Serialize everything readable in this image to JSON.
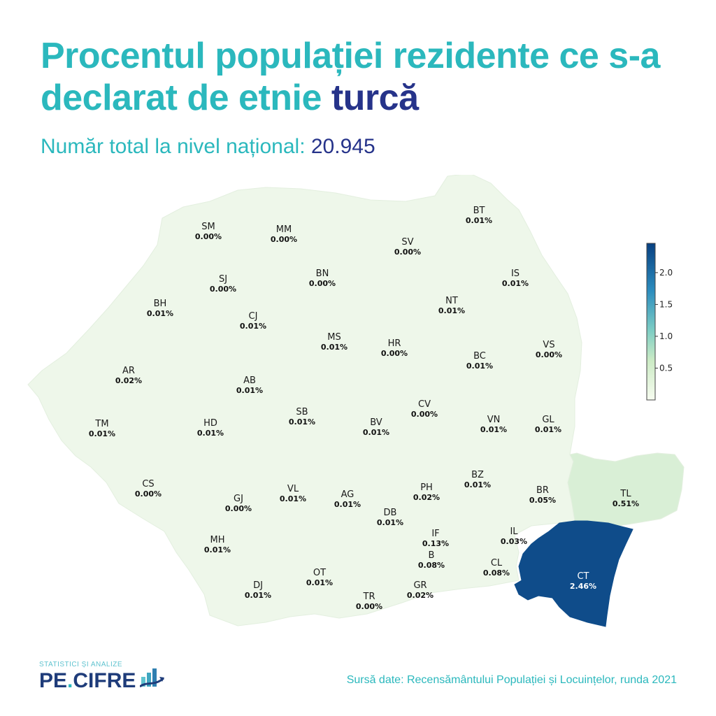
{
  "title": {
    "main": "Procentul populației rezidente ce s-a declarat de etnie",
    "accent": "turcă"
  },
  "subtitle": {
    "label": "Număr total la nivel național:",
    "value": "20.945"
  },
  "colors": {
    "title": "#2bb8bd",
    "accent": "#26338a",
    "base_region": "#eef7ea",
    "tl_region": "#d9efd6",
    "ct_region": "#0f4c8a"
  },
  "colorbar": {
    "ticks": [
      "2.0",
      "1.5",
      "1.0",
      "0.5"
    ],
    "tick_values": [
      2.0,
      1.5,
      1.0,
      0.5
    ],
    "min": 0.0,
    "max": 2.46
  },
  "chart_data": {
    "type": "choropleth",
    "unit": "%",
    "regions": [
      {
        "code": "SM",
        "value": "0.00%"
      },
      {
        "code": "MM",
        "value": "0.00%"
      },
      {
        "code": "BT",
        "value": "0.01%"
      },
      {
        "code": "SV",
        "value": "0.00%"
      },
      {
        "code": "SJ",
        "value": "0.00%"
      },
      {
        "code": "BN",
        "value": "0.00%"
      },
      {
        "code": "IS",
        "value": "0.01%"
      },
      {
        "code": "BH",
        "value": "0.01%"
      },
      {
        "code": "CJ",
        "value": "0.01%"
      },
      {
        "code": "NT",
        "value": "0.01%"
      },
      {
        "code": "MS",
        "value": "0.01%"
      },
      {
        "code": "HR",
        "value": "0.00%"
      },
      {
        "code": "BC",
        "value": "0.01%"
      },
      {
        "code": "VS",
        "value": "0.00%"
      },
      {
        "code": "AR",
        "value": "0.02%"
      },
      {
        "code": "AB",
        "value": "0.01%"
      },
      {
        "code": "CV",
        "value": "0.00%"
      },
      {
        "code": "TM",
        "value": "0.01%"
      },
      {
        "code": "HD",
        "value": "0.01%"
      },
      {
        "code": "SB",
        "value": "0.01%"
      },
      {
        "code": "BV",
        "value": "0.01%"
      },
      {
        "code": "VN",
        "value": "0.01%"
      },
      {
        "code": "GL",
        "value": "0.01%"
      },
      {
        "code": "BZ",
        "value": "0.01%"
      },
      {
        "code": "CS",
        "value": "0.00%"
      },
      {
        "code": "VL",
        "value": "0.01%"
      },
      {
        "code": "GJ",
        "value": "0.00%"
      },
      {
        "code": "AG",
        "value": "0.01%"
      },
      {
        "code": "PH",
        "value": "0.02%"
      },
      {
        "code": "BR",
        "value": "0.05%"
      },
      {
        "code": "TL",
        "value": "0.51%"
      },
      {
        "code": "DB",
        "value": "0.01%"
      },
      {
        "code": "IF",
        "value": "0.13%"
      },
      {
        "code": "IL",
        "value": "0.03%"
      },
      {
        "code": "MH",
        "value": "0.01%"
      },
      {
        "code": "B",
        "value": "0.08%"
      },
      {
        "code": "OT",
        "value": "0.01%"
      },
      {
        "code": "CL",
        "value": "0.08%"
      },
      {
        "code": "CT",
        "value": "2.46%"
      },
      {
        "code": "DJ",
        "value": "0.01%"
      },
      {
        "code": "GR",
        "value": "0.02%"
      },
      {
        "code": "TR",
        "value": "0.00%"
      }
    ]
  },
  "logo": {
    "tagline": "STATISTICI ȘI ANALIZE",
    "name_part1": "PE",
    "name_dot": ".",
    "name_part2": "CIFRE"
  },
  "source": "Sursă date: Recensământului Populației și Locuințelor, runda 2021"
}
